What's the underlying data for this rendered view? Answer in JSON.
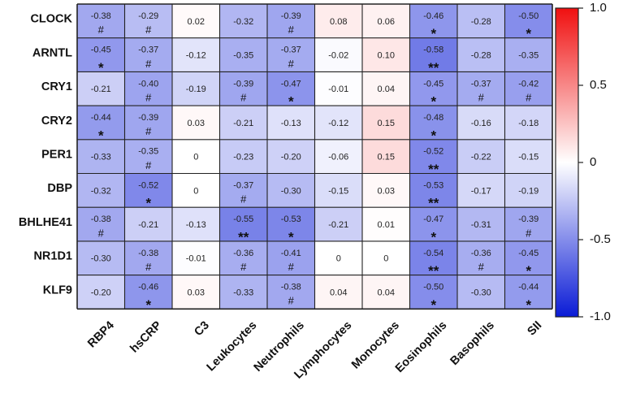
{
  "chart_data": {
    "type": "heatmap",
    "rows": [
      "CLOCK",
      "ARNTL",
      "CRY1",
      "CRY2",
      "PER1",
      "DBP",
      "BHLHE41",
      "NR1D1",
      "KLF9"
    ],
    "columns": [
      "RBP4",
      "hsCRP",
      "C3",
      "Leukocytes",
      "Neutrophils",
      "Lymphocytes",
      "Monocytes",
      "Eosinophils",
      "Basophils",
      "SII"
    ],
    "values": [
      [
        -0.38,
        -0.29,
        0.02,
        -0.32,
        -0.39,
        0.08,
        0.06,
        -0.46,
        -0.28,
        -0.5
      ],
      [
        -0.45,
        -0.37,
        -0.12,
        -0.35,
        -0.37,
        -0.02,
        0.1,
        -0.58,
        -0.28,
        -0.35
      ],
      [
        -0.21,
        -0.4,
        -0.19,
        -0.39,
        -0.47,
        -0.01,
        0.04,
        -0.45,
        -0.37,
        -0.42
      ],
      [
        -0.44,
        -0.39,
        0.03,
        -0.21,
        -0.13,
        -0.12,
        0.15,
        -0.48,
        -0.16,
        -0.18
      ],
      [
        -0.33,
        -0.35,
        0,
        -0.23,
        -0.2,
        -0.06,
        0.15,
        -0.52,
        -0.22,
        -0.15
      ],
      [
        -0.32,
        -0.52,
        0,
        -0.37,
        -0.3,
        -0.15,
        0.03,
        -0.53,
        -0.17,
        -0.19
      ],
      [
        -0.38,
        -0.21,
        -0.13,
        -0.55,
        -0.53,
        -0.21,
        0.01,
        -0.47,
        -0.31,
        -0.39
      ],
      [
        -0.3,
        -0.38,
        -0.01,
        -0.36,
        -0.41,
        0,
        0,
        -0.54,
        -0.36,
        -0.45
      ],
      [
        -0.2,
        -0.46,
        0.03,
        -0.33,
        -0.38,
        0.04,
        0.04,
        -0.5,
        -0.3,
        -0.44
      ]
    ],
    "labels": [
      [
        "-0.38",
        "-0.29",
        "0.02",
        "-0.32",
        "-0.39",
        "0.08",
        "0.06",
        "-0.46",
        "-0.28",
        "-0.50"
      ],
      [
        "-0.45",
        "-0.37",
        "-0.12",
        "-0.35",
        "-0.37",
        "-0.02",
        "0.10",
        "-0.58",
        "-0.28",
        "-0.35"
      ],
      [
        "-0.21",
        "-0.40",
        "-0.19",
        "-0.39",
        "-0.47",
        "-0.01",
        "0.04",
        "-0.45",
        "-0.37",
        "-0.42"
      ],
      [
        "-0.44",
        "-0.39",
        "0.03",
        "-0.21",
        "-0.13",
        "-0.12",
        "0.15",
        "-0.48",
        "-0.16",
        "-0.18"
      ],
      [
        "-0.33",
        "-0.35",
        "0",
        "-0.23",
        "-0.20",
        "-0.06",
        "0.15",
        "-0.52",
        "-0.22",
        "-0.15"
      ],
      [
        "-0.32",
        "-0.52",
        "0",
        "-0.37",
        "-0.30",
        "-0.15",
        "0.03",
        "-0.53",
        "-0.17",
        "-0.19"
      ],
      [
        "-0.38",
        "-0.21",
        "-0.13",
        "-0.55",
        "-0.53",
        "-0.21",
        "0.01",
        "-0.47",
        "-0.31",
        "-0.39"
      ],
      [
        "-0.30",
        "-0.38",
        "-0.01",
        "-0.36",
        "-0.41",
        "0",
        "0",
        "-0.54",
        "-0.36",
        "-0.45"
      ],
      [
        "-0.20",
        "-0.46",
        "0.03",
        "-0.33",
        "-0.38",
        "0.04",
        "0.04",
        "-0.50",
        "-0.30",
        "-0.44"
      ]
    ],
    "significance": [
      [
        "#",
        "#",
        "",
        "",
        "#",
        "",
        "",
        "*",
        "",
        "*"
      ],
      [
        "*",
        "#",
        "",
        "",
        "#",
        "",
        "",
        "**",
        "",
        ""
      ],
      [
        "",
        "#",
        "",
        "#",
        "*",
        "",
        "",
        "*",
        "#",
        "#"
      ],
      [
        "*",
        "#",
        "",
        "",
        "",
        "",
        "",
        "*",
        "",
        ""
      ],
      [
        "",
        "#",
        "",
        "",
        "",
        "",
        "",
        "**",
        "",
        ""
      ],
      [
        "",
        "*",
        "",
        "#",
        "",
        "",
        "",
        "**",
        "",
        ""
      ],
      [
        "#",
        "",
        "",
        "**",
        "*",
        "",
        "",
        "*",
        "",
        "#"
      ],
      [
        "",
        "#",
        "",
        "#",
        "#",
        "",
        "",
        "**",
        "#",
        "*"
      ],
      [
        "",
        "*",
        "",
        "",
        "#",
        "",
        "",
        "*",
        "",
        "*"
      ]
    ],
    "colorscale": {
      "min": -1.0,
      "max": 1.0,
      "min_color": "#0a1bd6",
      "mid_color": "#ffffff",
      "max_color": "#f01010",
      "ticks": [
        1.0,
        0.5,
        0,
        -0.5,
        -1.0
      ],
      "tick_labels": [
        "1.0",
        "0.5",
        "0",
        "-0.5",
        "-1.0"
      ]
    },
    "grid": true,
    "legend_placement": "right"
  }
}
